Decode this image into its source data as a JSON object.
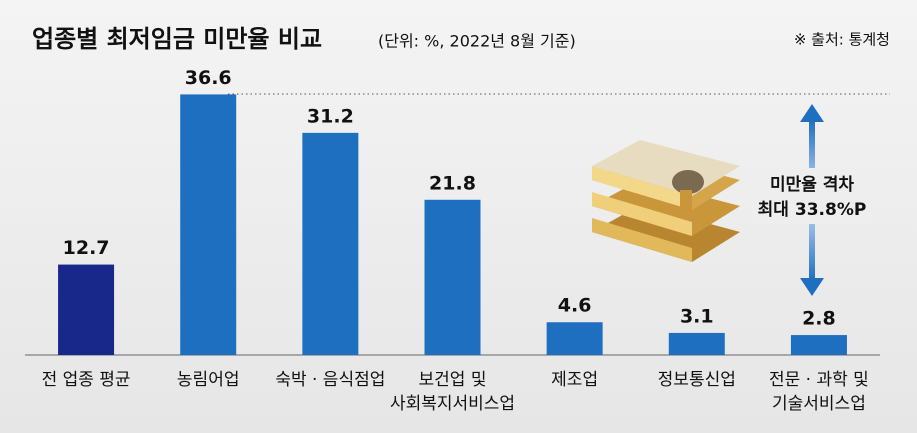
{
  "chart_data": {
    "type": "bar",
    "title": "업종별 최저임금 미만율 비교",
    "subtitle": "(단위: %, 2022년 8월 기준)",
    "source": "※ 출처: 통계청",
    "annotation": [
      "미만율 격차",
      "최대 33.8%P"
    ],
    "categories": [
      [
        "전 업종 평균"
      ],
      [
        "농림어업"
      ],
      [
        "숙박 · 음식점업"
      ],
      [
        "보건업 및",
        "사회복지서비스업"
      ],
      [
        "제조업"
      ],
      [
        "정보통신업"
      ],
      [
        "전문 · 과학 및",
        "기술서비스업"
      ]
    ],
    "values": [
      12.7,
      36.6,
      31.2,
      21.8,
      4.6,
      3.1,
      2.8
    ],
    "colors": [
      "#17288a",
      "#1f6fc1",
      "#1f6fc1",
      "#1f6fc1",
      "#1f6fc1",
      "#1f6fc1",
      "#1f6fc1"
    ],
    "ylim": [
      0,
      37.5
    ]
  }
}
